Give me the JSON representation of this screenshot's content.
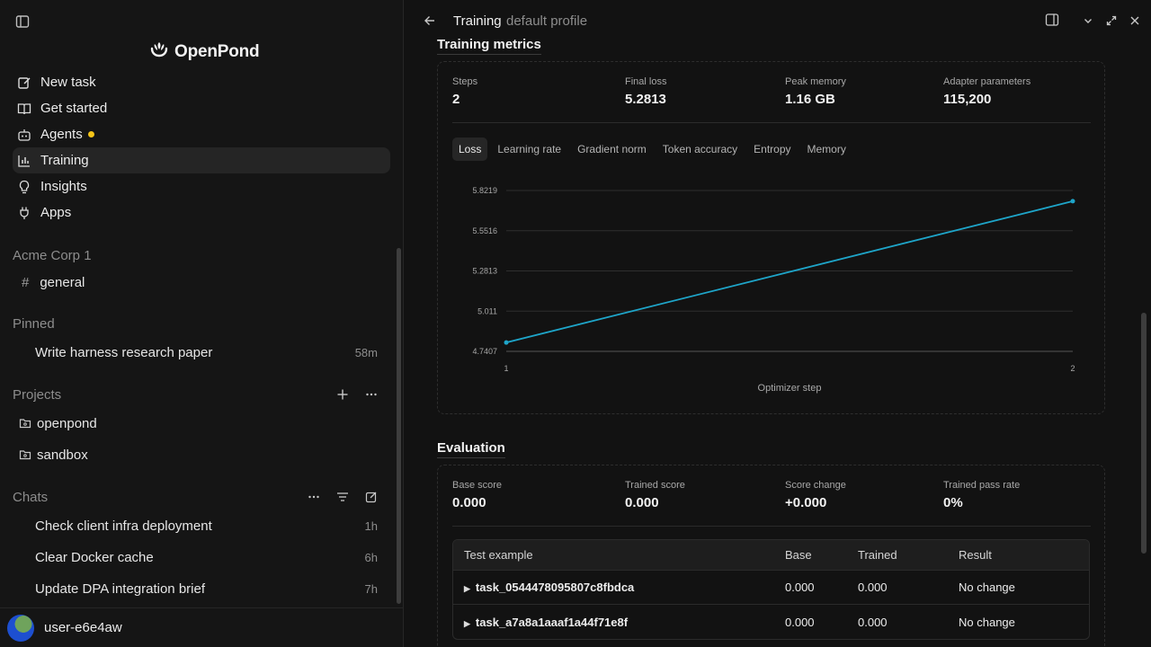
{
  "sidebar": {
    "brand": "OpenPond",
    "nav": [
      {
        "label": "New task",
        "icon": "edit-icon"
      },
      {
        "label": "Get started",
        "icon": "book-icon"
      },
      {
        "label": "Agents",
        "icon": "bot-icon"
      },
      {
        "label": "Training",
        "icon": "chart-icon"
      },
      {
        "label": "Insights",
        "icon": "lightbulb-icon"
      },
      {
        "label": "Apps",
        "icon": "plug-icon"
      }
    ],
    "workspace": {
      "name": "Acme Corp 1",
      "channel_hash": "#",
      "channel": "general"
    },
    "pinned": {
      "label": "Pinned",
      "items": [
        {
          "title": "Write harness research paper",
          "time": "58m"
        }
      ]
    },
    "projects": {
      "label": "Projects",
      "items": [
        "openpond",
        "sandbox"
      ]
    },
    "chats": {
      "label": "Chats",
      "items": [
        {
          "title": "Check client infra deployment",
          "time": "1h"
        },
        {
          "title": "Clear Docker cache",
          "time": "6h"
        },
        {
          "title": "Update DPA integration brief",
          "time": "7h"
        }
      ]
    },
    "user": "user-e6e4aw"
  },
  "main": {
    "title": "Training",
    "subtitle": "default profile",
    "training_metrics": {
      "heading": "Training metrics",
      "stats": [
        {
          "label": "Steps",
          "value": "2"
        },
        {
          "label": "Final loss",
          "value": "5.2813"
        },
        {
          "label": "Peak memory",
          "value": "1.16 GB"
        },
        {
          "label": "Adapter parameters",
          "value": "115,200"
        }
      ],
      "tabs": [
        "Loss",
        "Learning rate",
        "Gradient norm",
        "Token accuracy",
        "Entropy",
        "Memory"
      ],
      "active_tab": "Loss"
    },
    "evaluation": {
      "heading": "Evaluation",
      "stats": [
        {
          "label": "Base score",
          "value": "0.000"
        },
        {
          "label": "Trained score",
          "value": "0.000"
        },
        {
          "label": "Score change",
          "value": "+0.000"
        },
        {
          "label": "Trained pass rate",
          "value": "0%"
        }
      ],
      "columns": [
        "Test example",
        "Base",
        "Trained",
        "Result"
      ],
      "rows": [
        {
          "task": "task_0544478095807c8fbdca",
          "base": "0.000",
          "trained": "0.000",
          "result": "No change"
        },
        {
          "task": "task_a7a8a1aaaf1a44f71e8f",
          "base": "0.000",
          "trained": "0.000",
          "result": "No change"
        }
      ]
    }
  },
  "chart_data": {
    "type": "line",
    "x": [
      1,
      2
    ],
    "series": [
      {
        "values": [
          4.8,
          5.75
        ]
      }
    ],
    "ylim": [
      4.7407,
      5.8219
    ],
    "yticks": [
      "5.8219",
      "5.5516",
      "5.2813",
      "5.011",
      "4.7407"
    ],
    "xticks": [
      "1",
      "2"
    ],
    "xlabel": "Optimizer step",
    "ylabel": "",
    "grid": true,
    "color": "#1ea5c9"
  }
}
